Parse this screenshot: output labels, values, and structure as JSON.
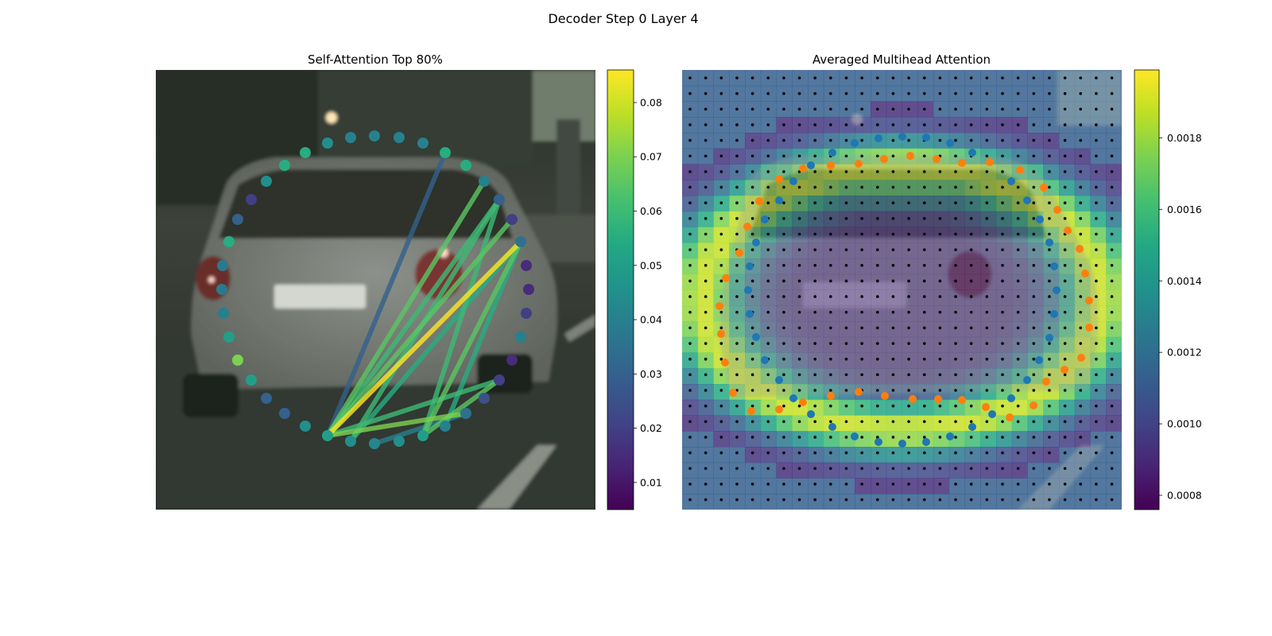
{
  "figure": {
    "suptitle": "Decoder Step 0 Layer 4"
  },
  "chart_data": [
    {
      "type": "scatter",
      "title": "Self-Attention Top 80%",
      "background": "blurred street photo, rear of a silver hatchback car",
      "colormap": "viridis",
      "colorbar": {
        "range": [
          0.005,
          0.086
        ],
        "ticks": [
          0.01,
          0.02,
          0.03,
          0.04,
          0.05,
          0.06,
          0.07,
          0.08
        ],
        "tick_labels": [
          "0.01",
          "0.02",
          "0.03",
          "0.04",
          "0.05",
          "0.06",
          "0.07",
          "0.08"
        ]
      },
      "points": {
        "x": [
          412,
          441,
          471,
          502,
          532,
          560,
          586,
          609,
          628,
          644,
          655,
          662,
          665,
          662,
          655,
          644,
          628,
          609,
          586,
          560,
          532,
          502,
          471,
          441,
          412,
          384,
          358,
          335,
          316,
          299,
          288,
          280,
          279,
          281,
          288,
          299,
          316,
          335,
          358,
          384
        ],
        "y": [
          548,
          555,
          558,
          555,
          548,
          536,
          520,
          501,
          478,
          453,
          424,
          394,
          364,
          334,
          304,
          276,
          251,
          228,
          208,
          192,
          180,
          173,
          171,
          173,
          180,
          192,
          208,
          228,
          251,
          276,
          304,
          334,
          364,
          394,
          424,
          453,
          478,
          501,
          520,
          536
        ],
        "value": [
          0.05,
          0.045,
          0.042,
          0.045,
          0.05,
          0.04,
          0.035,
          0.025,
          0.02,
          0.015,
          0.04,
          0.02,
          0.015,
          0.015,
          0.035,
          0.02,
          0.03,
          0.04,
          0.055,
          0.055,
          0.04,
          0.04,
          0.04,
          0.04,
          0.045,
          0.055,
          0.055,
          0.045,
          0.02,
          0.03,
          0.055,
          0.038,
          0.038,
          0.04,
          0.05,
          0.07,
          0.05,
          0.03,
          0.03,
          0.045
        ]
      },
      "edges": [
        {
          "from": 0,
          "to": 14,
          "value": 0.086
        },
        {
          "from": 0,
          "to": 15,
          "value": 0.065
        },
        {
          "from": 0,
          "to": 16,
          "value": 0.06
        },
        {
          "from": 0,
          "to": 17,
          "value": 0.065
        },
        {
          "from": 1,
          "to": 14,
          "value": 0.055
        },
        {
          "from": 1,
          "to": 16,
          "value": 0.06
        },
        {
          "from": 2,
          "to": 6,
          "value": 0.04
        },
        {
          "from": 4,
          "to": 14,
          "value": 0.065
        },
        {
          "from": 4,
          "to": 16,
          "value": 0.06
        },
        {
          "from": 5,
          "to": 14,
          "value": 0.055
        },
        {
          "from": 0,
          "to": 6,
          "value": 0.07
        },
        {
          "from": 0,
          "to": 8,
          "value": 0.06
        },
        {
          "from": 4,
          "to": 8,
          "value": 0.065
        },
        {
          "from": 0,
          "to": 19,
          "value": 0.03
        }
      ]
    },
    {
      "type": "heatmap",
      "title": "Averaged Multihead Attention",
      "background": "blurred street photo, rear of a silver hatchback car",
      "colormap": "viridis",
      "colorbar": {
        "range": [
          0.00076,
          0.00199
        ],
        "ticks": [
          0.0008,
          0.001,
          0.0012,
          0.0014,
          0.0016,
          0.0018
        ],
        "tick_labels": [
          "0.0008",
          "0.0010",
          "0.0012",
          "0.0014",
          "0.0016",
          "0.0018"
        ]
      },
      "grid": {
        "columns": 28,
        "rows": 28
      },
      "points_orange": {
        "x": [
          1010,
          1045,
          1080,
          1112,
          1145,
          1178,
          1210,
          1245,
          1283,
          1313,
          1330,
          1343,
          1358,
          1365,
          1370,
          1370,
          1360,
          1339,
          1316,
          1300,
          1270,
          1240,
          1210,
          1180,
          1148,
          1113,
          1080,
          1045,
          1010,
          980,
          945,
          922,
          912,
          907,
          905,
          913,
          930,
          940,
          955,
          980
        ],
        "y": [
          212,
          208,
          206,
          200,
          196,
          200,
          205,
          204,
          214,
          236,
          264,
          290,
          313,
          344,
          378,
          412,
          450,
          465,
          480,
          510,
          525,
          512,
          503,
          502,
          502,
          498,
          493,
          498,
          506,
          515,
          517,
          494,
          456,
          420,
          385,
          350,
          318,
          285,
          253,
          225
        ]
      },
      "points_blue": {
        "x": [
          1020,
          1047,
          1075,
          1105,
          1135,
          1165,
          1195,
          1223,
          1272,
          1292,
          1308,
          1320,
          1326,
          1329,
          1326,
          1320,
          1307,
          1292,
          1272,
          1248,
          1223,
          1195,
          1165,
          1135,
          1105,
          1075,
          1047,
          1020,
          998,
          980,
          962,
          951,
          943,
          941,
          943,
          951,
          962,
          980,
          998
        ],
        "y": [
          208,
          192,
          180,
          174,
          172,
          173,
          180,
          192,
          228,
          252,
          276,
          305,
          335,
          365,
          395,
          425,
          453,
          478,
          501,
          521,
          537,
          549,
          556,
          558,
          556,
          549,
          537,
          521,
          501,
          478,
          453,
          424,
          395,
          365,
          335,
          305,
          276,
          252,
          228
        ]
      }
    }
  ]
}
